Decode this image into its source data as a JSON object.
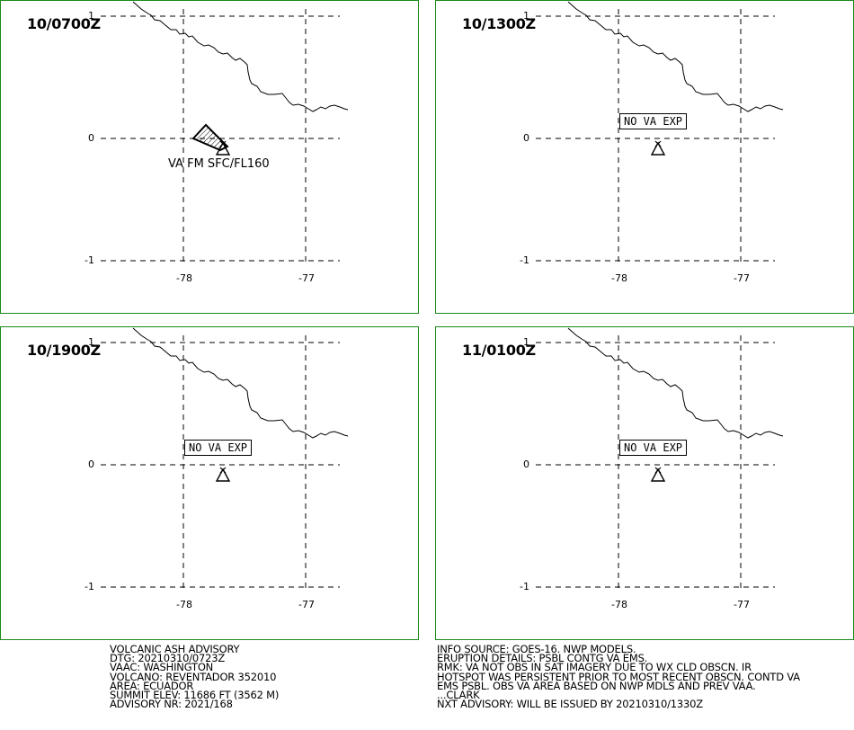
{
  "panels": [
    {
      "time": "10/0700Z",
      "status": "",
      "va_label": "VA FM SFC/FL160"
    },
    {
      "time": "10/1300Z",
      "status": "NO VA EXP",
      "va_label": ""
    },
    {
      "time": "10/1900Z",
      "status": "NO VA EXP",
      "va_label": ""
    },
    {
      "time": "11/0100Z",
      "status": "NO VA EXP",
      "va_label": ""
    }
  ],
  "axes": {
    "lat_ticks": [
      "1",
      "0",
      "-1"
    ],
    "lon_ticks": [
      "-78",
      "-77"
    ]
  },
  "advisory_left": [
    "VOLCANIC ASH ADVISORY",
    "DTG: 20210310/0723Z",
    "VAAC: WASHINGTON",
    "VOLCANO: REVENTADOR 352010",
    "AREA: ECUADOR",
    "SUMMIT ELEV: 11686 FT (3562 M)",
    "ADVISORY NR: 2021/168"
  ],
  "advisory_right": [
    "INFO SOURCE: GOES-16. NWP MODELS.",
    "ERUPTION DETAILS: PSBL CONTG VA EMS.",
    "RMK: VA NOT OBS IN SAT IMAGERY DUE TO WX CLD OBSCN. IR",
    "HOTSPOT WAS PERSISTENT PRIOR TO MOST RECENT OBSCN. CONTD VA",
    "EMS PSBL. OBS VA AREA BASED ON NWP MDLS AND PREV VAA.",
    "...CLARK",
    "NXT ADVISORY: WILL BE ISSUED BY 20210310/1330Z"
  ],
  "colors": {
    "panel_border": "#1a8a1a",
    "lines": "#000000"
  },
  "icons": {
    "volcano": "volcano-triangle-icon",
    "ash_cloud": "ash-cloud-polygon-icon"
  }
}
